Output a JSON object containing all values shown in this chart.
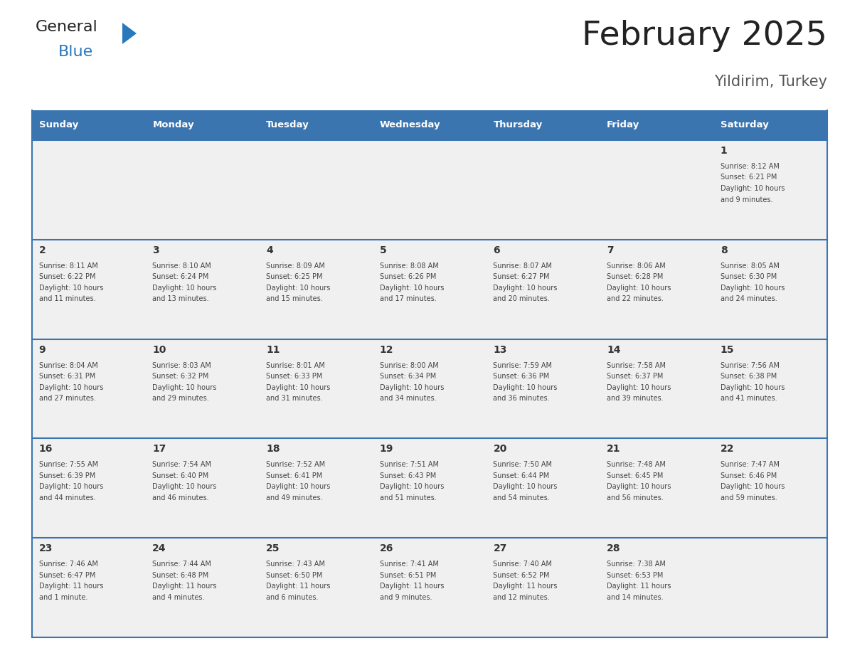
{
  "title": "February 2025",
  "subtitle": "Yildirim, Turkey",
  "days_of_week": [
    "Sunday",
    "Monday",
    "Tuesday",
    "Wednesday",
    "Thursday",
    "Friday",
    "Saturday"
  ],
  "header_bg": "#3a75b0",
  "header_text": "#ffffff",
  "cell_bg": "#f0f0f0",
  "border_color": "#3a75b0",
  "day_number_color": "#333333",
  "info_text_color": "#444444",
  "title_color": "#222222",
  "subtitle_color": "#555555",
  "logo_general_color": "#222222",
  "logo_blue_color": "#2878be",
  "calendar_data": [
    [
      {
        "day": null,
        "info": null
      },
      {
        "day": null,
        "info": null
      },
      {
        "day": null,
        "info": null
      },
      {
        "day": null,
        "info": null
      },
      {
        "day": null,
        "info": null
      },
      {
        "day": null,
        "info": null
      },
      {
        "day": 1,
        "info": "Sunrise: 8:12 AM\nSunset: 6:21 PM\nDaylight: 10 hours\nand 9 minutes."
      }
    ],
    [
      {
        "day": 2,
        "info": "Sunrise: 8:11 AM\nSunset: 6:22 PM\nDaylight: 10 hours\nand 11 minutes."
      },
      {
        "day": 3,
        "info": "Sunrise: 8:10 AM\nSunset: 6:24 PM\nDaylight: 10 hours\nand 13 minutes."
      },
      {
        "day": 4,
        "info": "Sunrise: 8:09 AM\nSunset: 6:25 PM\nDaylight: 10 hours\nand 15 minutes."
      },
      {
        "day": 5,
        "info": "Sunrise: 8:08 AM\nSunset: 6:26 PM\nDaylight: 10 hours\nand 17 minutes."
      },
      {
        "day": 6,
        "info": "Sunrise: 8:07 AM\nSunset: 6:27 PM\nDaylight: 10 hours\nand 20 minutes."
      },
      {
        "day": 7,
        "info": "Sunrise: 8:06 AM\nSunset: 6:28 PM\nDaylight: 10 hours\nand 22 minutes."
      },
      {
        "day": 8,
        "info": "Sunrise: 8:05 AM\nSunset: 6:30 PM\nDaylight: 10 hours\nand 24 minutes."
      }
    ],
    [
      {
        "day": 9,
        "info": "Sunrise: 8:04 AM\nSunset: 6:31 PM\nDaylight: 10 hours\nand 27 minutes."
      },
      {
        "day": 10,
        "info": "Sunrise: 8:03 AM\nSunset: 6:32 PM\nDaylight: 10 hours\nand 29 minutes."
      },
      {
        "day": 11,
        "info": "Sunrise: 8:01 AM\nSunset: 6:33 PM\nDaylight: 10 hours\nand 31 minutes."
      },
      {
        "day": 12,
        "info": "Sunrise: 8:00 AM\nSunset: 6:34 PM\nDaylight: 10 hours\nand 34 minutes."
      },
      {
        "day": 13,
        "info": "Sunrise: 7:59 AM\nSunset: 6:36 PM\nDaylight: 10 hours\nand 36 minutes."
      },
      {
        "day": 14,
        "info": "Sunrise: 7:58 AM\nSunset: 6:37 PM\nDaylight: 10 hours\nand 39 minutes."
      },
      {
        "day": 15,
        "info": "Sunrise: 7:56 AM\nSunset: 6:38 PM\nDaylight: 10 hours\nand 41 minutes."
      }
    ],
    [
      {
        "day": 16,
        "info": "Sunrise: 7:55 AM\nSunset: 6:39 PM\nDaylight: 10 hours\nand 44 minutes."
      },
      {
        "day": 17,
        "info": "Sunrise: 7:54 AM\nSunset: 6:40 PM\nDaylight: 10 hours\nand 46 minutes."
      },
      {
        "day": 18,
        "info": "Sunrise: 7:52 AM\nSunset: 6:41 PM\nDaylight: 10 hours\nand 49 minutes."
      },
      {
        "day": 19,
        "info": "Sunrise: 7:51 AM\nSunset: 6:43 PM\nDaylight: 10 hours\nand 51 minutes."
      },
      {
        "day": 20,
        "info": "Sunrise: 7:50 AM\nSunset: 6:44 PM\nDaylight: 10 hours\nand 54 minutes."
      },
      {
        "day": 21,
        "info": "Sunrise: 7:48 AM\nSunset: 6:45 PM\nDaylight: 10 hours\nand 56 minutes."
      },
      {
        "day": 22,
        "info": "Sunrise: 7:47 AM\nSunset: 6:46 PM\nDaylight: 10 hours\nand 59 minutes."
      }
    ],
    [
      {
        "day": 23,
        "info": "Sunrise: 7:46 AM\nSunset: 6:47 PM\nDaylight: 11 hours\nand 1 minute."
      },
      {
        "day": 24,
        "info": "Sunrise: 7:44 AM\nSunset: 6:48 PM\nDaylight: 11 hours\nand 4 minutes."
      },
      {
        "day": 25,
        "info": "Sunrise: 7:43 AM\nSunset: 6:50 PM\nDaylight: 11 hours\nand 6 minutes."
      },
      {
        "day": 26,
        "info": "Sunrise: 7:41 AM\nSunset: 6:51 PM\nDaylight: 11 hours\nand 9 minutes."
      },
      {
        "day": 27,
        "info": "Sunrise: 7:40 AM\nSunset: 6:52 PM\nDaylight: 11 hours\nand 12 minutes."
      },
      {
        "day": 28,
        "info": "Sunrise: 7:38 AM\nSunset: 6:53 PM\nDaylight: 11 hours\nand 14 minutes."
      },
      {
        "day": null,
        "info": null
      }
    ]
  ]
}
